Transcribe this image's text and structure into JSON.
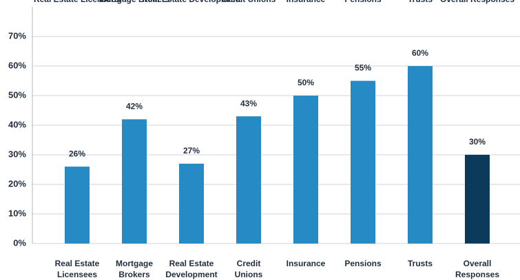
{
  "chart_data": {
    "type": "bar",
    "categories": [
      "Real Estate\nLicensees",
      "Mortgage\nBrokers",
      "Real Estate\nDevelopment",
      "Credit\nUnions",
      "Insurance",
      "Pensions",
      "Trusts",
      "Overall\nResponses"
    ],
    "values": [
      26,
      42,
      27,
      43,
      50,
      55,
      60,
      30
    ],
    "value_labels": [
      "26%",
      "42%",
      "27%",
      "43%",
      "50%",
      "55%",
      "60%",
      "30%"
    ],
    "colors": [
      "#268bc5",
      "#268bc5",
      "#268bc5",
      "#268bc5",
      "#268bc5",
      "#268bc5",
      "#268bc5",
      "#0c3a5b"
    ],
    "ylim": [
      0,
      80
    ],
    "yticks": [
      {
        "value": 0,
        "label": "0%"
      },
      {
        "value": 10,
        "label": "10%"
      },
      {
        "value": 20,
        "label": "20%"
      },
      {
        "value": 30,
        "label": "30%"
      },
      {
        "value": 40,
        "label": "40%"
      },
      {
        "value": 50,
        "label": "50%"
      },
      {
        "value": 60,
        "label": "60%"
      },
      {
        "value": 70,
        "label": "70%"
      }
    ],
    "grid": true
  }
}
